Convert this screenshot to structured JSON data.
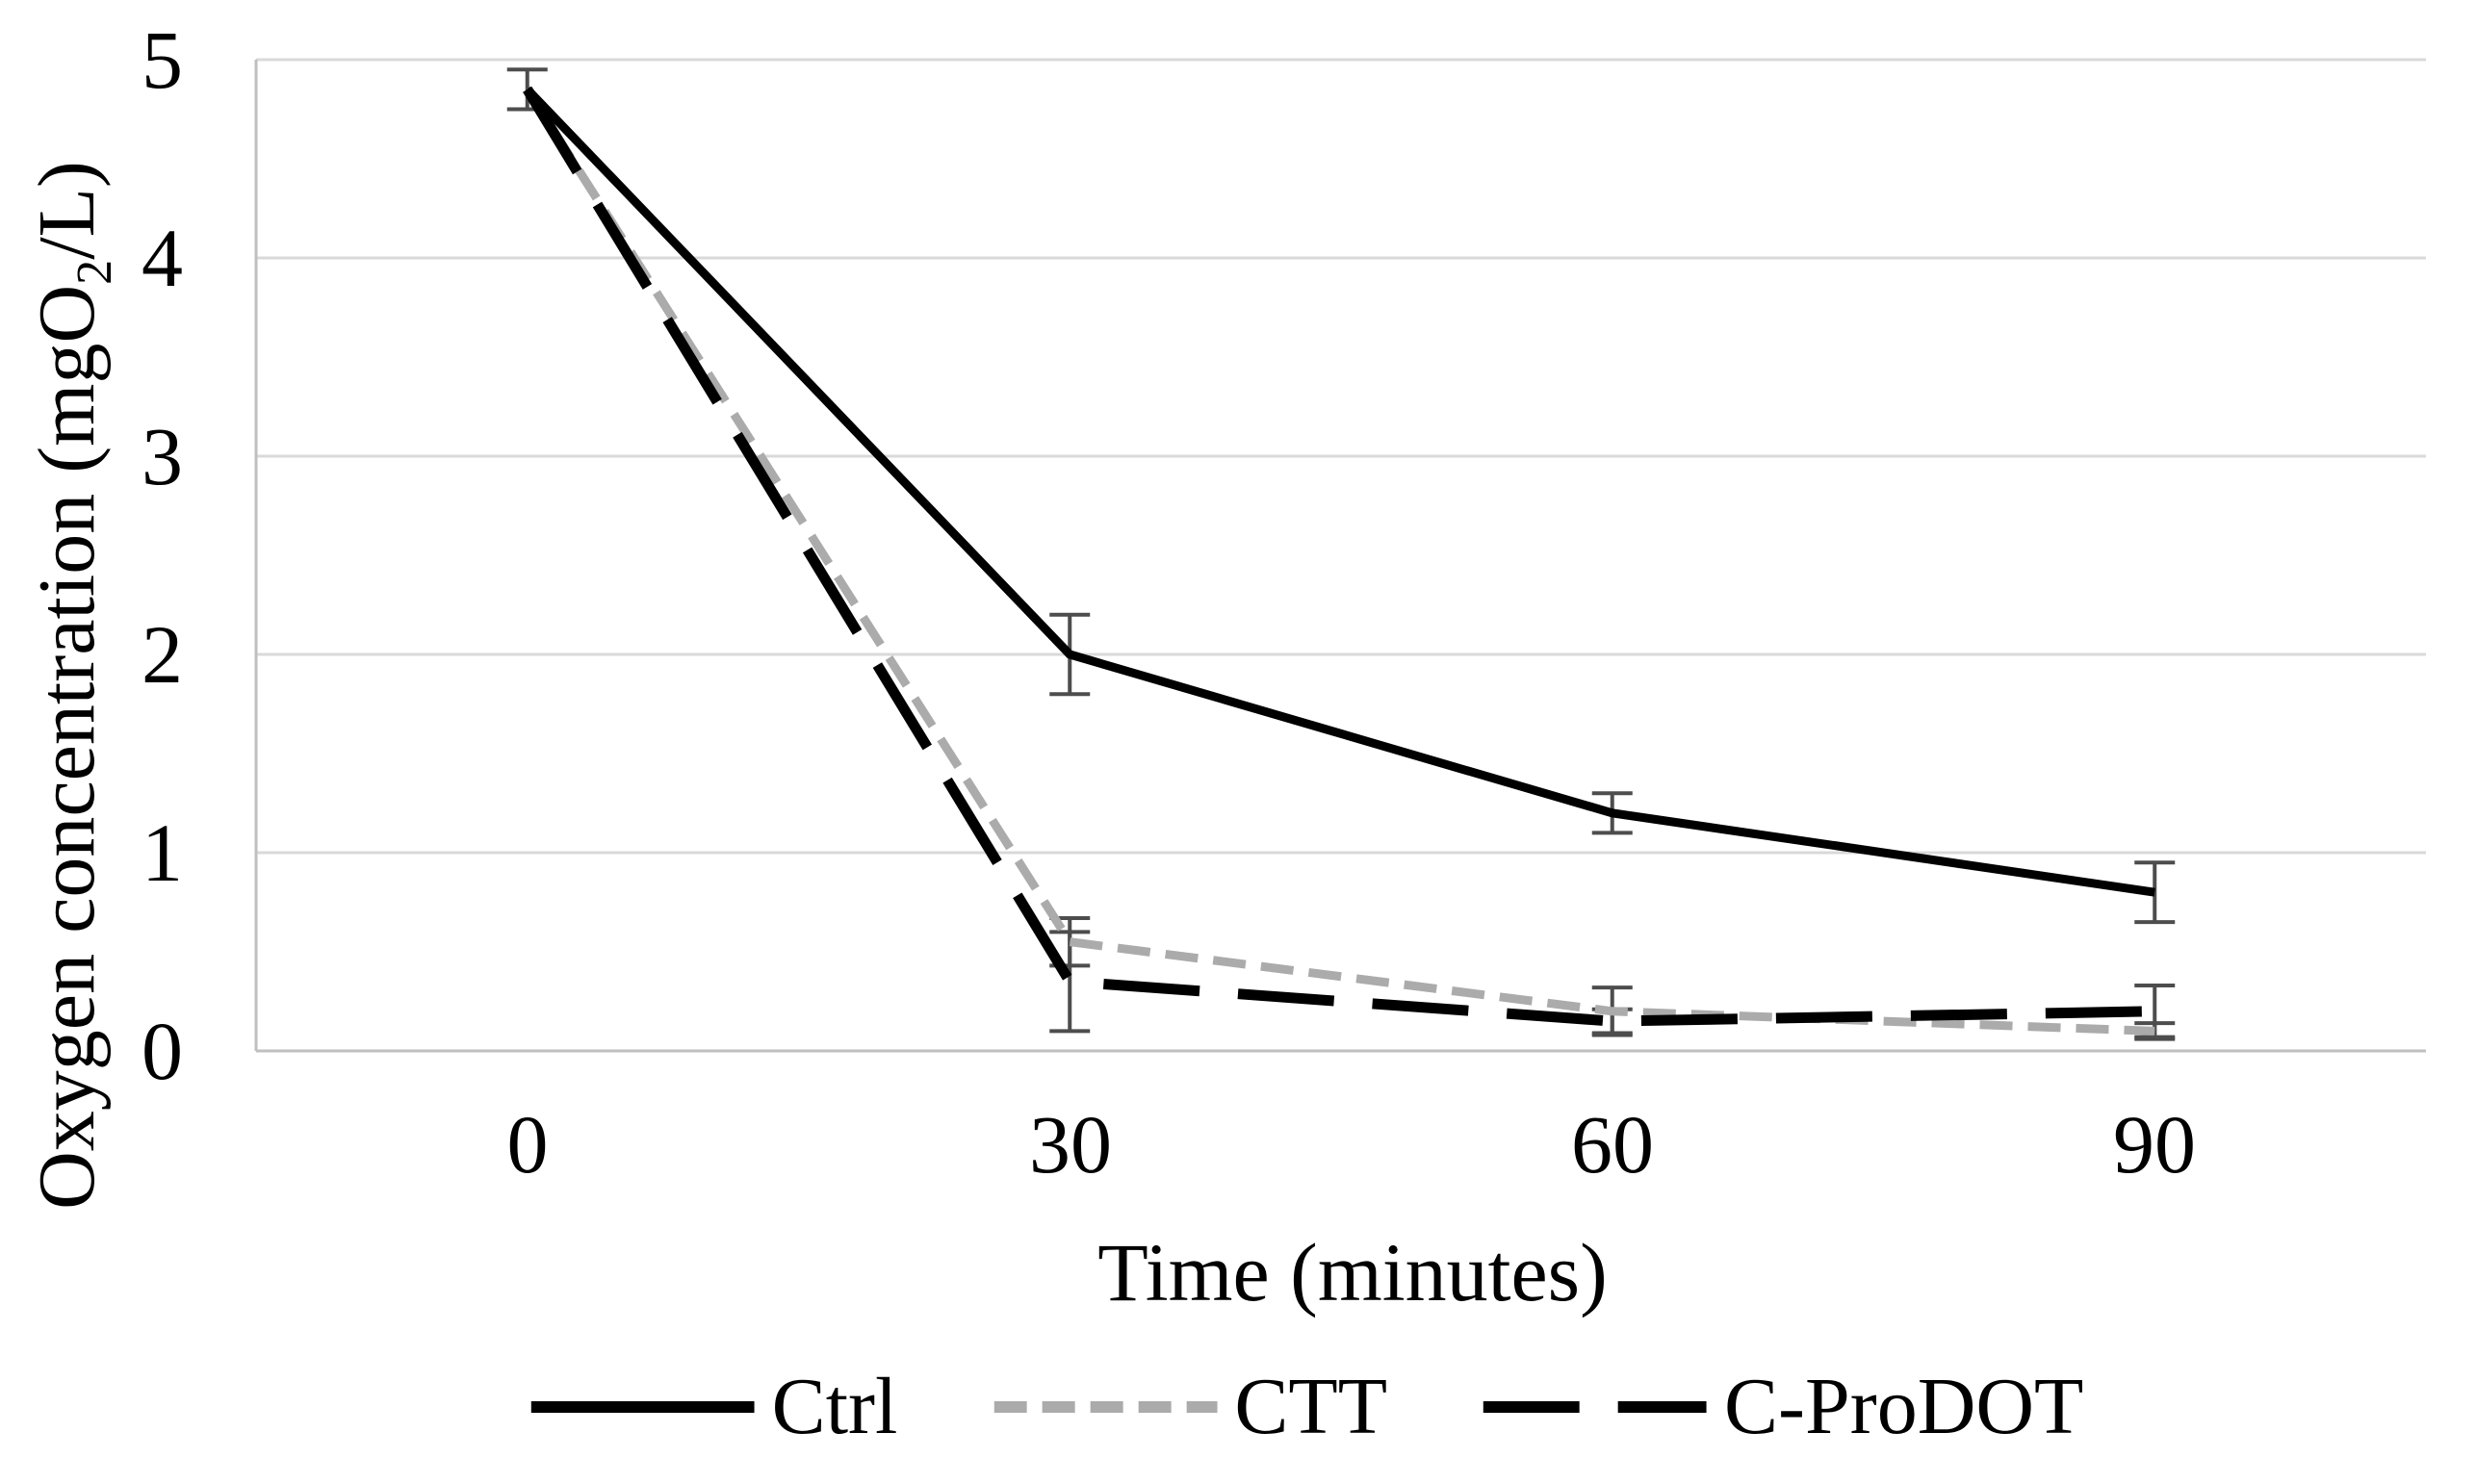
{
  "chart_data": {
    "type": "line",
    "title": "",
    "xlabel": "Time (minutes)",
    "ylabel": "Oxygen concentration (mgO2/L)",
    "ylabel_parts": {
      "pre": "Oxygen concentration (mgO",
      "sub": "2",
      "post": "/L)"
    },
    "categories": [
      "0",
      "30",
      "60",
      "90"
    ],
    "x_values": [
      0,
      30,
      60,
      90
    ],
    "ylim": [
      0,
      5
    ],
    "ytick_labels": [
      "5",
      "4",
      "3",
      "2",
      "1",
      "0"
    ],
    "ytick_values": [
      5,
      4,
      3,
      2,
      1,
      0
    ],
    "grid": "horizontal-only",
    "legend_position": "bottom-center",
    "background": "#ffffff",
    "colors": {
      "gridline": "#d9d9d9",
      "axis_line": "#bfbfbf",
      "error_bar": "#4d4d4d",
      "text": "#000000"
    },
    "series": [
      {
        "name": "Ctrl",
        "color": "#000000",
        "line_style": "solid",
        "values": [
          4.85,
          2.0,
          1.2,
          0.8
        ],
        "errors": [
          0.1,
          0.2,
          0.1,
          0.15
        ]
      },
      {
        "name": "CTT",
        "color": "#ababab",
        "line_style": "short-dash",
        "values": [
          4.85,
          0.55,
          0.2,
          0.1
        ],
        "errors": [
          0,
          0.12,
          0.12,
          0.04
        ]
      },
      {
        "name": "C-ProDOT",
        "color": "#000000",
        "line_style": "long-dash",
        "values": [
          4.85,
          0.35,
          0.15,
          0.2
        ],
        "errors": [
          0,
          0.25,
          0.06,
          0.13
        ]
      }
    ]
  }
}
